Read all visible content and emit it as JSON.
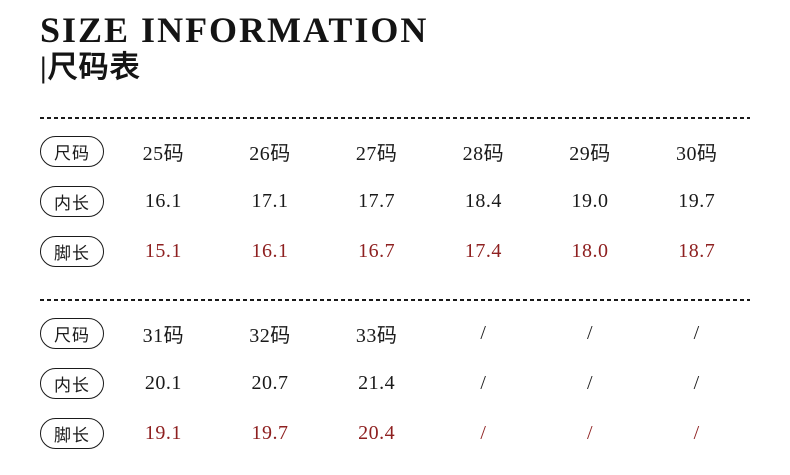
{
  "header": {
    "title": "SIZE INFORMATION",
    "subtitle": "|尺码表"
  },
  "colors": {
    "text": "#1a1a1a",
    "accent_red": "#8e2020",
    "background": "#ffffff"
  },
  "tables": [
    {
      "rows": [
        {
          "label": "尺码",
          "emphasis": "normal",
          "values": [
            "25码",
            "26码",
            "27码",
            "28码",
            "29码",
            "30码"
          ]
        },
        {
          "label": "内长",
          "emphasis": "normal",
          "values": [
            "16.1",
            "17.1",
            "17.7",
            "18.4",
            "19.0",
            "19.7"
          ]
        },
        {
          "label": "脚长",
          "emphasis": "red",
          "values": [
            "15.1",
            "16.1",
            "16.7",
            "17.4",
            "18.0",
            "18.7"
          ]
        }
      ]
    },
    {
      "rows": [
        {
          "label": "尺码",
          "emphasis": "normal",
          "values": [
            "31码",
            "32码",
            "33码",
            "/",
            "/",
            "/"
          ]
        },
        {
          "label": "内长",
          "emphasis": "normal",
          "values": [
            "20.1",
            "20.7",
            "21.4",
            "/",
            "/",
            "/"
          ]
        },
        {
          "label": "脚长",
          "emphasis": "red",
          "values": [
            "19.1",
            "19.7",
            "20.4",
            "/",
            "/",
            "/"
          ]
        }
      ]
    }
  ],
  "chart_data": {
    "type": "table",
    "title": "SIZE INFORMATION |尺码表",
    "row_headers": [
      "尺码",
      "内长",
      "脚长"
    ],
    "categories": [
      "25码",
      "26码",
      "27码",
      "28码",
      "29码",
      "30码",
      "31码",
      "32码",
      "33码"
    ],
    "series": [
      {
        "name": "内长",
        "values": [
          16.1,
          17.1,
          17.7,
          18.4,
          19.0,
          19.7,
          20.1,
          20.7,
          21.4
        ]
      },
      {
        "name": "脚长",
        "values": [
          15.1,
          16.1,
          16.7,
          17.4,
          18.0,
          18.7,
          19.1,
          19.7,
          20.4
        ]
      }
    ],
    "missing_value_marker": "/",
    "notes": "Two stacked table blocks separated by dashed dividers; 脚长 row rendered in dark red."
  }
}
